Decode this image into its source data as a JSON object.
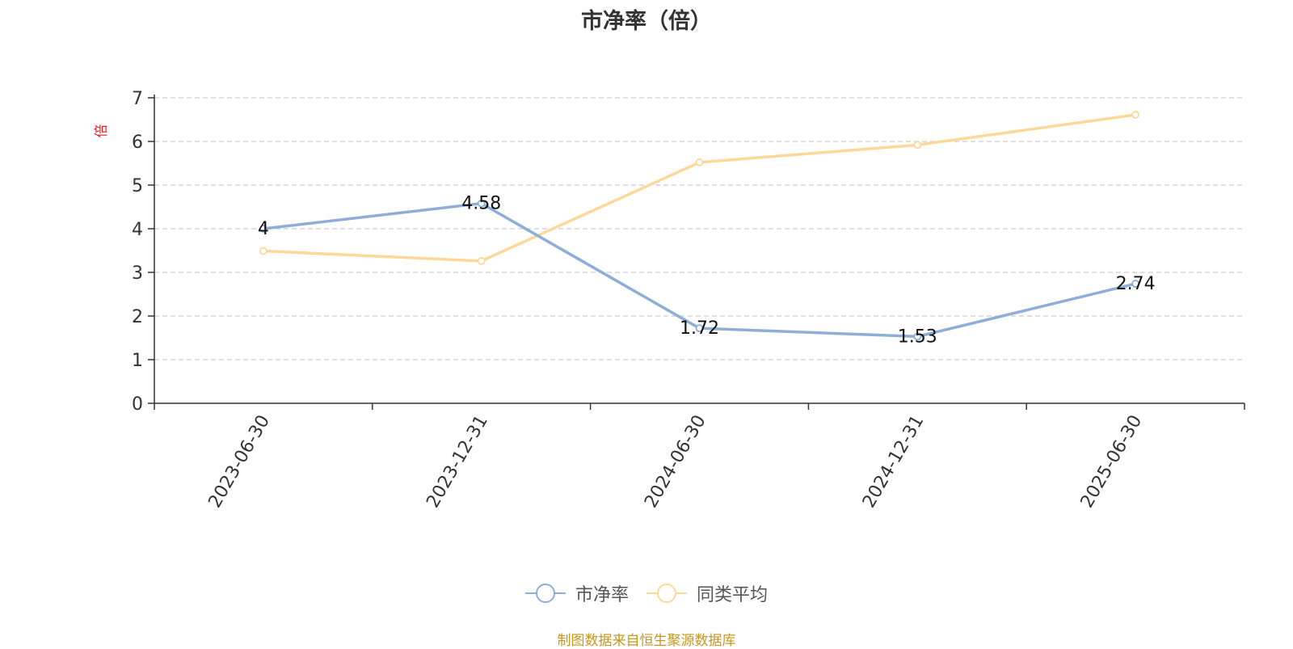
{
  "chart_data": {
    "type": "line",
    "title": "市净率（倍）",
    "ylabel": "倍",
    "xlabel": "",
    "categories": [
      "2023-06-30",
      "2023-12-31",
      "2024-06-30",
      "2024-12-31",
      "2025-06-30"
    ],
    "ylim": [
      0,
      7
    ],
    "yticks": [
      "0",
      "1",
      "2",
      "3",
      "4",
      "5",
      "6",
      "7"
    ],
    "grid": true,
    "legend_position": "bottom-center",
    "series": [
      {
        "name": "市净率",
        "color": "#8eaed8",
        "values": [
          4,
          4.58,
          1.72,
          1.53,
          2.74
        ],
        "labels": [
          "4",
          "4.58",
          "1.72",
          "1.53",
          "2.74"
        ]
      },
      {
        "name": "同类平均",
        "color": "#fcd99a",
        "values": [
          3.49,
          3.26,
          5.52,
          5.92,
          6.61
        ]
      }
    ]
  },
  "source_note": "制图数据来自恒生聚源数据库",
  "colors": {
    "title": "#333333",
    "axis": "#333333",
    "grid": "#cccccc",
    "ylabel": "#e02020",
    "source": "#c8961e"
  }
}
